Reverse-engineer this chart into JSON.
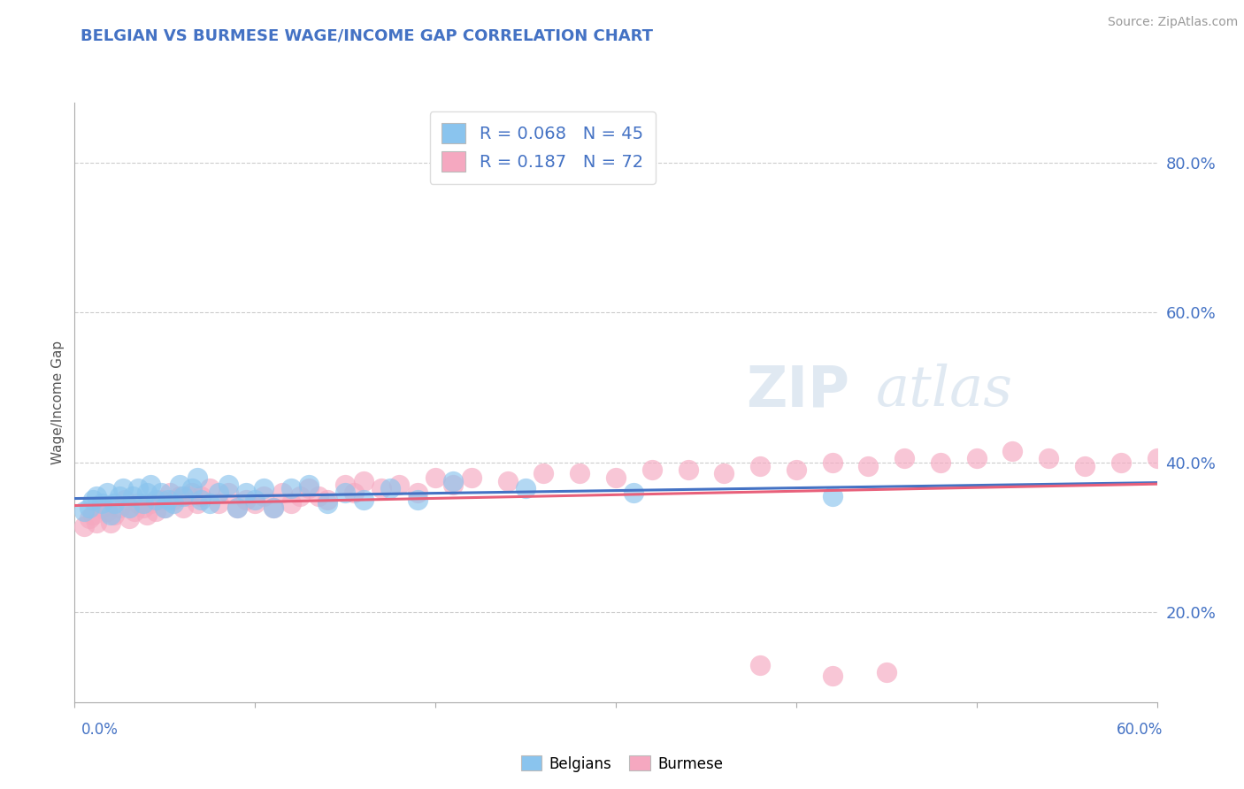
{
  "title": "BELGIAN VS BURMESE WAGE/INCOME GAP CORRELATION CHART",
  "source_text": "Source: ZipAtlas.com",
  "ylabel": "Wage/Income Gap",
  "yticks": [
    0.2,
    0.4,
    0.6,
    0.8
  ],
  "ytick_labels": [
    "20.0%",
    "40.0%",
    "60.0%",
    "80.0%"
  ],
  "xlim": [
    0.0,
    0.6
  ],
  "ylim": [
    0.08,
    0.88
  ],
  "belgian_R": 0.068,
  "belgian_N": 45,
  "burmese_R": 0.187,
  "burmese_N": 72,
  "belgian_color": "#8AC4EE",
  "burmese_color": "#F5A8C0",
  "belgian_line_color": "#4472C4",
  "burmese_line_color": "#E8607A",
  "title_color": "#4472C4",
  "axis_color": "#4472C4",
  "grid_color": "#CCCCCC",
  "belgian_scatter_x": [
    0.005,
    0.008,
    0.01,
    0.012,
    0.015,
    0.018,
    0.02,
    0.022,
    0.025,
    0.027,
    0.03,
    0.032,
    0.035,
    0.038,
    0.04,
    0.042,
    0.045,
    0.048,
    0.05,
    0.052,
    0.055,
    0.058,
    0.06,
    0.065,
    0.068,
    0.07,
    0.075,
    0.08,
    0.085,
    0.09,
    0.095,
    0.1,
    0.105,
    0.11,
    0.12,
    0.13,
    0.14,
    0.15,
    0.16,
    0.175,
    0.19,
    0.21,
    0.25,
    0.31,
    0.42
  ],
  "belgian_scatter_y": [
    0.335,
    0.34,
    0.35,
    0.355,
    0.345,
    0.36,
    0.33,
    0.345,
    0.355,
    0.365,
    0.34,
    0.355,
    0.365,
    0.345,
    0.36,
    0.37,
    0.35,
    0.36,
    0.34,
    0.35,
    0.345,
    0.37,
    0.355,
    0.365,
    0.38,
    0.35,
    0.345,
    0.36,
    0.37,
    0.34,
    0.36,
    0.35,
    0.365,
    0.34,
    0.365,
    0.37,
    0.345,
    0.36,
    0.35,
    0.365,
    0.35,
    0.375,
    0.365,
    0.36,
    0.355
  ],
  "burmese_scatter_x": [
    0.005,
    0.008,
    0.01,
    0.012,
    0.015,
    0.018,
    0.02,
    0.022,
    0.025,
    0.028,
    0.03,
    0.033,
    0.035,
    0.038,
    0.04,
    0.042,
    0.045,
    0.048,
    0.05,
    0.053,
    0.055,
    0.058,
    0.06,
    0.063,
    0.065,
    0.068,
    0.07,
    0.075,
    0.08,
    0.085,
    0.09,
    0.095,
    0.1,
    0.105,
    0.11,
    0.115,
    0.12,
    0.125,
    0.13,
    0.135,
    0.14,
    0.15,
    0.155,
    0.16,
    0.17,
    0.18,
    0.19,
    0.2,
    0.21,
    0.22,
    0.24,
    0.26,
    0.28,
    0.3,
    0.32,
    0.34,
    0.36,
    0.38,
    0.4,
    0.42,
    0.44,
    0.46,
    0.48,
    0.5,
    0.52,
    0.54,
    0.56,
    0.58,
    0.6,
    0.45,
    0.38,
    0.42
  ],
  "burmese_scatter_y": [
    0.315,
    0.325,
    0.33,
    0.32,
    0.34,
    0.335,
    0.32,
    0.33,
    0.34,
    0.35,
    0.325,
    0.335,
    0.345,
    0.34,
    0.33,
    0.345,
    0.335,
    0.35,
    0.34,
    0.36,
    0.35,
    0.355,
    0.34,
    0.355,
    0.36,
    0.345,
    0.355,
    0.365,
    0.345,
    0.36,
    0.34,
    0.35,
    0.345,
    0.355,
    0.34,
    0.36,
    0.345,
    0.355,
    0.365,
    0.355,
    0.35,
    0.37,
    0.36,
    0.375,
    0.365,
    0.37,
    0.36,
    0.38,
    0.37,
    0.38,
    0.375,
    0.385,
    0.385,
    0.38,
    0.39,
    0.39,
    0.385,
    0.395,
    0.39,
    0.4,
    0.395,
    0.405,
    0.4,
    0.405,
    0.415,
    0.405,
    0.395,
    0.4,
    0.405,
    0.12,
    0.13,
    0.115
  ]
}
